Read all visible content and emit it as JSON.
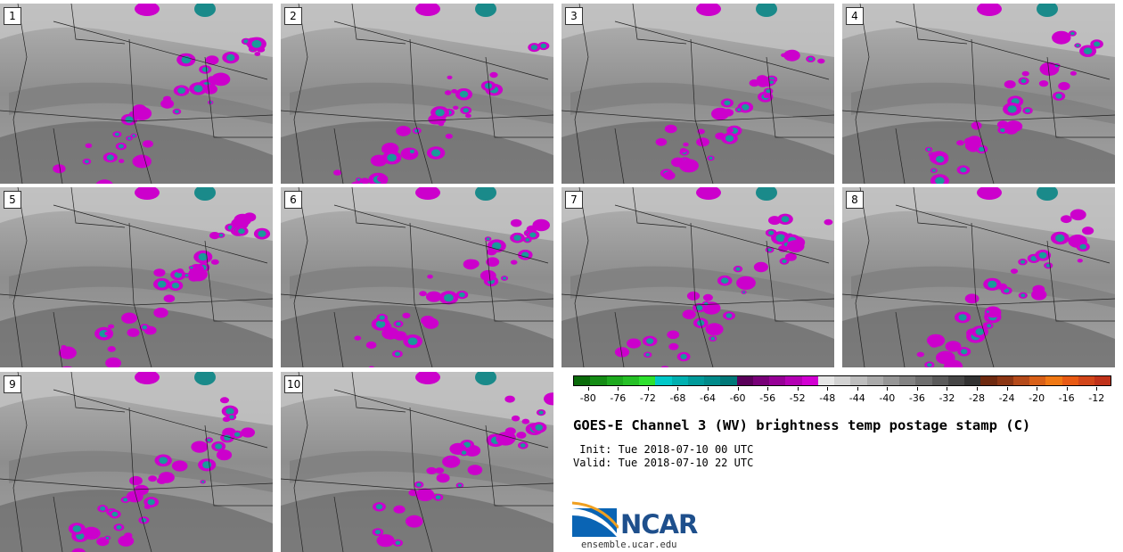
{
  "panels": [
    {
      "label": "1"
    },
    {
      "label": "2"
    },
    {
      "label": "3"
    },
    {
      "label": "4"
    },
    {
      "label": "5"
    },
    {
      "label": "6"
    },
    {
      "label": "7"
    },
    {
      "label": "8"
    },
    {
      "label": "9"
    },
    {
      "label": "10"
    }
  ],
  "colorbar": {
    "colors": [
      "#0a6b0a",
      "#158c15",
      "#1eaa1e",
      "#26c026",
      "#2ee02e",
      "#00c8c8",
      "#00b0b0",
      "#009a9a",
      "#008a8a",
      "#007878",
      "#5a005a",
      "#780078",
      "#960096",
      "#b400b4",
      "#d200d2",
      "#e6e6e6",
      "#d2d2d2",
      "#bebebe",
      "#aaaaaa",
      "#969696",
      "#828282",
      "#6e6e6e",
      "#5a5a5a",
      "#464646",
      "#323232",
      "#6e2a10",
      "#8c3614",
      "#b44a1a",
      "#d86018",
      "#f07814",
      "#e85a14",
      "#d2461a",
      "#c0321a"
    ],
    "ticks": [
      "-80",
      "-76",
      "-72",
      "-68",
      "-64",
      "-60",
      "-56",
      "-52",
      "-48",
      "-44",
      "-40",
      "-36",
      "-32",
      "-28",
      "-24",
      "-20",
      "-16",
      "-12"
    ],
    "tick_values": [
      -80,
      -76,
      -72,
      -68,
      -64,
      -60,
      -56,
      -52,
      -48,
      -44,
      -40,
      -36,
      -32,
      -28,
      -24,
      -20,
      -16,
      -12
    ],
    "range": [
      -82,
      -10
    ]
  },
  "title": "GOES-E Channel 3 (WV) brightness temp postage stamp (C)",
  "init_line": " Init: Tue 2018-07-10 00 UTC",
  "valid_line": "Valid: Tue 2018-07-10 22 UTC",
  "logo": {
    "text": "NCAR",
    "url": "ensemble.ucar.edu"
  }
}
